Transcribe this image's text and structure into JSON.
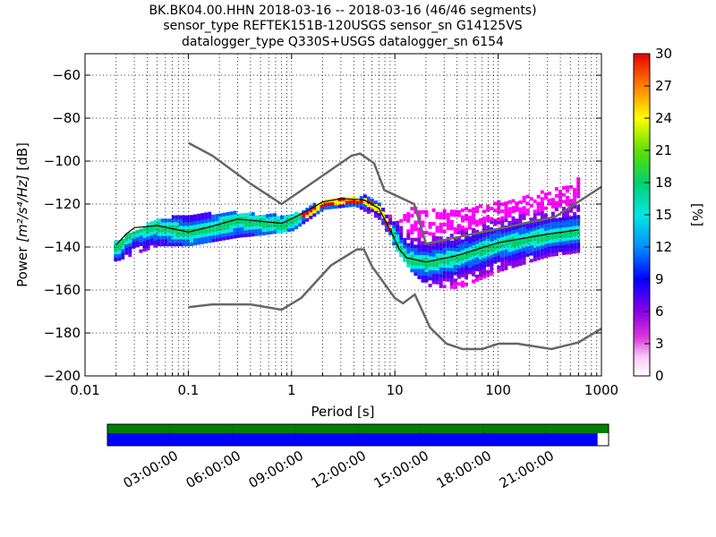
{
  "chart_data": {
    "type": "heatmap",
    "title_lines": [
      "BK.BK04.00.HHN   2018-03-16 -- 2018-03-16  (46/46 segments)",
      "sensor_type REFTEK151B-120USGS sensor_sn G14125VS",
      "datalogger_type Q330S+USGS datalogger_sn 6154"
    ],
    "xlabel": "Period [s]",
    "ylabel_prefix": "Power ",
    "ylabel_math": "[m²/s⁴/Hz]",
    "ylabel_suffix": " [dB]",
    "xscale": "log",
    "xlim": [
      0.01,
      1000
    ],
    "ylim": [
      -200,
      -50
    ],
    "x_ticks": [
      0.01,
      0.1,
      1,
      10,
      100,
      1000
    ],
    "x_tick_labels": [
      "0.01",
      "0.1",
      "1",
      "10",
      "100",
      "1000"
    ],
    "y_ticks": [
      -200,
      -180,
      -160,
      -140,
      -120,
      -100,
      -80,
      -60
    ],
    "y_tick_labels": [
      "−200",
      "−180",
      "−160",
      "−140",
      "−120",
      "−100",
      "−80",
      "−60"
    ],
    "grid": true,
    "colorbar": {
      "label": "[%]",
      "ticks": [
        0,
        3,
        6,
        9,
        12,
        15,
        18,
        21,
        24,
        27,
        30
      ],
      "tick_labels": [
        "0",
        "3",
        "6",
        "9",
        "12",
        "15",
        "18",
        "21",
        "24",
        "27",
        "30"
      ],
      "range": [
        0,
        30
      ]
    },
    "noise_model_high": [
      [
        0.1,
        -91.5
      ],
      [
        0.17,
        -97.4
      ],
      [
        0.4,
        -110.5
      ],
      [
        0.8,
        -120
      ],
      [
        3.8,
        -97.5
      ],
      [
        4.6,
        -96.5
      ],
      [
        6.3,
        -101
      ],
      [
        7.9,
        -113.5
      ],
      [
        15.4,
        -120
      ],
      [
        20,
        -138.5
      ],
      [
        354.8,
        -126
      ],
      [
        1000,
        -112
      ]
    ],
    "noise_model_low": [
      [
        0.1,
        -168
      ],
      [
        0.17,
        -166.7
      ],
      [
        0.4,
        -166.7
      ],
      [
        0.8,
        -169.2
      ],
      [
        1.24,
        -163.7
      ],
      [
        2.4,
        -148.6
      ],
      [
        4.3,
        -141.1
      ],
      [
        5.0,
        -141.1
      ],
      [
        6.0,
        -149
      ],
      [
        10,
        -163.8
      ],
      [
        12,
        -166.2
      ],
      [
        15.6,
        -162.1
      ],
      [
        21.9,
        -177.5
      ],
      [
        31.6,
        -185
      ],
      [
        45,
        -187.5
      ],
      [
        70,
        -187.5
      ],
      [
        101,
        -185
      ],
      [
        154,
        -185
      ],
      [
        328,
        -187.5
      ],
      [
        600,
        -184.4
      ],
      [
        1000,
        -178
      ]
    ],
    "median_psd": [
      [
        0.02,
        -139
      ],
      [
        0.025,
        -134
      ],
      [
        0.03,
        -131
      ],
      [
        0.05,
        -130
      ],
      [
        0.1,
        -133
      ],
      [
        0.15,
        -131
      ],
      [
        0.3,
        -127
      ],
      [
        0.5,
        -128
      ],
      [
        0.8,
        -129
      ],
      [
        1.2,
        -125
      ],
      [
        2,
        -119
      ],
      [
        3,
        -117.5
      ],
      [
        5,
        -118
      ],
      [
        7,
        -122
      ],
      [
        9,
        -132
      ],
      [
        11,
        -141
      ],
      [
        13,
        -145
      ],
      [
        20,
        -147
      ],
      [
        40,
        -144
      ],
      [
        100,
        -138
      ],
      [
        300,
        -134
      ],
      [
        600,
        -132
      ]
    ],
    "max_psd": [
      [
        0.02,
        -136
      ],
      [
        0.05,
        -126
      ],
      [
        0.1,
        -124
      ],
      [
        0.3,
        -123
      ],
      [
        0.5,
        -124
      ],
      [
        1,
        -124
      ],
      [
        2,
        -117
      ],
      [
        3,
        -115.5
      ],
      [
        5,
        -115.5
      ],
      [
        7,
        -119
      ],
      [
        10,
        -128
      ],
      [
        14,
        -121
      ],
      [
        20,
        -122
      ],
      [
        50,
        -121
      ],
      [
        100,
        -118
      ],
      [
        200,
        -115
      ],
      [
        400,
        -111
      ],
      [
        600,
        -107
      ]
    ],
    "min_psd": [
      [
        0.02,
        -145
      ],
      [
        0.05,
        -138
      ],
      [
        0.1,
        -138
      ],
      [
        0.3,
        -134
      ],
      [
        0.5,
        -133
      ],
      [
        1,
        -131
      ],
      [
        2,
        -121
      ],
      [
        4,
        -119.5
      ],
      [
        7,
        -126
      ],
      [
        10,
        -140
      ],
      [
        14,
        -150
      ],
      [
        20,
        -157
      ],
      [
        40,
        -158
      ],
      [
        100,
        -150
      ],
      [
        300,
        -143
      ],
      [
        600,
        -141
      ]
    ]
  },
  "timeline": {
    "labels": [
      "03:00:00",
      "06:00:00",
      "09:00:00",
      "12:00:00",
      "15:00:00",
      "18:00:00",
      "21:00:00"
    ],
    "hours_ticks": [
      0,
      3,
      6,
      9,
      12,
      15,
      18,
      21,
      24
    ],
    "coverage_fraction": 0.978,
    "colors": {
      "top_bar": "#008000",
      "bottom_bar": "#0000ff"
    }
  }
}
